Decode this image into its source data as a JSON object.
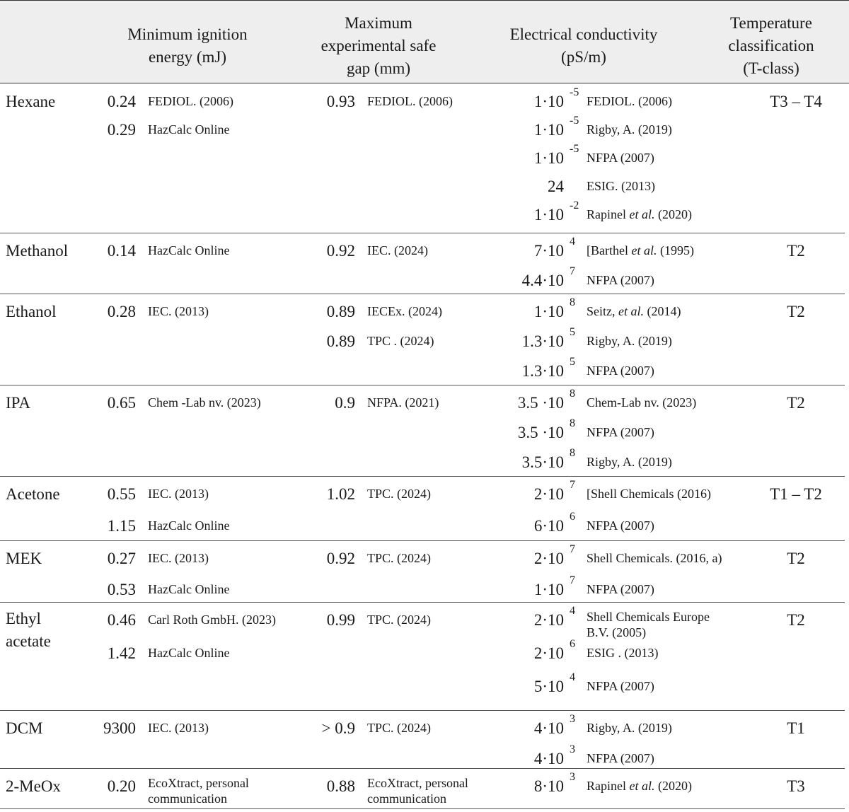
{
  "header": {
    "mie_line1": "Minimum ignition",
    "mie_line2": "energy (mJ)",
    "mesg_line1": "Maximum",
    "mesg_line2": "experimental safe",
    "mesg_line3": "gap (mm)",
    "ec_line1": "Electrical conductivity",
    "ec_line2": "(pS/m)",
    "tc_line1": "Temperature",
    "tc_line2": "classification",
    "tc_line3": "(T-class)"
  },
  "rows": [
    {
      "name": "Hexane",
      "tclass": "T3 – T4",
      "mie": [
        {
          "value": "0.24",
          "ref": "FEDIOL. (2006)"
        },
        {
          "value": "0.29",
          "ref": "HazCalc Online"
        }
      ],
      "mesg": [
        {
          "value": "0.93",
          "ref": "FEDIOL. (2006)"
        }
      ],
      "ec": [
        {
          "value": "1·10",
          "exp": "-5",
          "ref": "FEDIOL. (2006)"
        },
        {
          "value": "1·10",
          "exp": "-5",
          "ref": "Rigby, A. (2019)"
        },
        {
          "value": "1·10",
          "exp": "-5",
          "ref": "NFPA (2007)"
        },
        {
          "value": "24",
          "exp": "",
          "ref": "ESIG. (2013)"
        },
        {
          "value": "1·10",
          "exp": "-2",
          "ref_pre": "Rapinel ",
          "ref_it": "et al.",
          "ref_post": " (2020)"
        }
      ]
    },
    {
      "name": "Methanol",
      "tclass": "T2",
      "mie": [
        {
          "value": "0.14",
          "ref": "HazCalc Online"
        }
      ],
      "mesg": [
        {
          "value": "0.92",
          "ref": "IEC. (2024)"
        }
      ],
      "ec": [
        {
          "value": "7·10",
          "exp": "4",
          "ref_pre": "[Barthel ",
          "ref_it": "et al.",
          "ref_post": " (1995)"
        },
        {
          "value": "4.4·10",
          "exp": "7",
          "ref": "NFPA (2007)"
        }
      ]
    },
    {
      "name": "Ethanol",
      "tclass": "T2",
      "mie": [
        {
          "value": "0.28",
          "ref": "IEC. (2013)"
        }
      ],
      "mesg": [
        {
          "value": "0.89",
          "ref": "IECEx. (2024)"
        },
        {
          "value": "0.89",
          "ref": "TPC . (2024)"
        }
      ],
      "ec": [
        {
          "value": "1·10",
          "exp": "8",
          "ref_pre": "Seitz, ",
          "ref_it": "et al.",
          "ref_post": " (2014)"
        },
        {
          "value": "1.3·10",
          "exp": "5",
          "ref": "Rigby, A. (2019)"
        },
        {
          "value": "1.3·10",
          "exp": "5",
          "ref": "NFPA (2007)"
        }
      ]
    },
    {
      "name": "IPA",
      "tclass": "T2",
      "mie": [
        {
          "value": "0.65",
          "ref": "Chem -Lab nv. (2023)"
        }
      ],
      "mesg": [
        {
          "value": "0.9",
          "ref": "NFPA. (2021)"
        }
      ],
      "ec": [
        {
          "value": "3.5 ·10",
          "exp": "8",
          "ref": "Chem-Lab nv. (2023)"
        },
        {
          "value": "3.5 ·10",
          "exp": "8",
          "ref": "NFPA (2007)"
        },
        {
          "value": "3.5·10",
          "exp": "8",
          "ref": "Rigby, A. (2019)"
        }
      ]
    },
    {
      "name": "Acetone",
      "tclass": "T1 – T2",
      "mie": [
        {
          "value": "0.55",
          "ref": "IEC. (2013)"
        },
        {
          "value": "1.15",
          "ref": "HazCalc Online"
        }
      ],
      "mesg": [
        {
          "value": "1.02",
          "ref": "TPC. (2024)"
        }
      ],
      "ec": [
        {
          "value": "2·10",
          "exp": "7",
          "ref": "[Shell Chemicals (2016)"
        },
        {
          "value": "6·10",
          "exp": "6",
          "ref": "NFPA (2007)"
        }
      ]
    },
    {
      "name": "MEK",
      "tclass": "T2",
      "mie": [
        {
          "value": "0.27",
          "ref": "IEC. (2013)"
        },
        {
          "value": "0.53",
          "ref": "HazCalc Online"
        }
      ],
      "mesg": [
        {
          "value": "0.92",
          "ref": "TPC. (2024)"
        }
      ],
      "ec": [
        {
          "value": "2·10",
          "exp": "7",
          "ref": "Shell Chemicals. (2016, a)"
        },
        {
          "value": "1·10",
          "exp": "7",
          "ref": "NFPA (2007)"
        }
      ]
    },
    {
      "name": "Ethyl acetate",
      "tclass": "T2",
      "mie": [
        {
          "value": "0.46",
          "ref": "Carl Roth GmbH. (2023)"
        },
        {
          "value": "1.42",
          "ref": "HazCalc Online"
        }
      ],
      "mesg": [
        {
          "value": "0.99",
          "ref": "TPC. (2024)"
        }
      ],
      "ec": [
        {
          "value": "2·10",
          "exp": "4",
          "ref": "Shell Chemicals Europe B.V. (2005)"
        },
        {
          "value": "2·10",
          "exp": "6",
          "ref": "ESIG . (2013)"
        },
        {
          "value": "5·10",
          "exp": "4",
          "ref": "NFPA (2007)"
        }
      ]
    },
    {
      "name": "DCM",
      "tclass": "T1",
      "mie": [
        {
          "value": "9300",
          "ref": "IEC. (2013)"
        }
      ],
      "mesg": [
        {
          "value": "> 0.9",
          "ref": "TPC. (2024)"
        }
      ],
      "ec": [
        {
          "value": "4·10",
          "exp": "3",
          "ref": "Rigby, A. (2019)"
        },
        {
          "value": "4·10",
          "exp": "3",
          "ref": "NFPA (2007)"
        }
      ]
    },
    {
      "name": "2-MeOx",
      "tclass": "T3",
      "mie": [
        {
          "value": "0.20",
          "ref": "EcoXtract, personal communication"
        }
      ],
      "mesg": [
        {
          "value": "0.88",
          "ref": "EcoXtract, personal communication"
        }
      ],
      "ec": [
        {
          "value": "8·10",
          "exp": "3",
          "ref_pre": "Rapinel ",
          "ref_it": "et al.",
          "ref_post": " (2020)"
        }
      ]
    }
  ]
}
